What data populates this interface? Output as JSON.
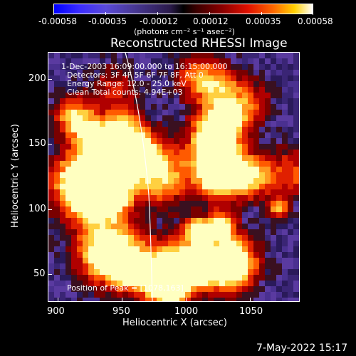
{
  "colorbar": {
    "tick_labels": [
      "-0.00058",
      "-0.00035",
      "-0.00012",
      "0.00012",
      "0.00035",
      "0.00058"
    ],
    "units": "(photons cm⁻² s⁻¹ asec⁻²)"
  },
  "plot": {
    "title": "Reconstructed RHESSI Image",
    "xlabel": "Heliocentric X (arcsec)",
    "ylabel": "Heliocentric Y (arcsec)",
    "x_ticks": [
      "900",
      "950",
      "1000",
      "1050"
    ],
    "y_ticks": [
      "200",
      "150",
      "100",
      "50"
    ],
    "annotations": {
      "time": "1-Dec-2003 16:09:00.000 to 16:15:00.000",
      "detectors": "Detectors: 3F 4F 5F 6F 7F 8F, Att 0",
      "energy": "Energy Range: 12.0 - 25.0 keV",
      "clean": "Clean    Total counts: 4.94E+03",
      "peak": "Position of Peak = [1078,163]"
    }
  },
  "footer": {
    "date": "7-May-2022 15:17"
  },
  "colors": {
    "background": "#000000",
    "text": "#ffffff",
    "limb": "#ffffff"
  }
}
